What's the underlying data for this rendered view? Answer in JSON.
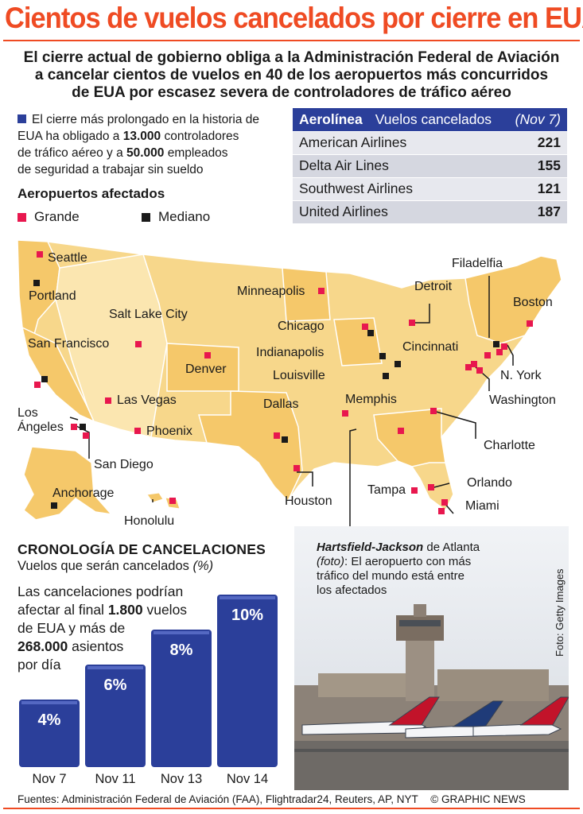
{
  "header": {
    "title": "Cientos de vuelos cancelados por cierre en EUA",
    "subtitle_lines": [
      "El cierre actual de gobierno obliga a la Administración Federal de Aviación",
      "a cancelar cientos de vuelos en 40 de los aeropuertos más concurridos",
      "de EUA por escasez severa de controladores de tráfico aéreo"
    ]
  },
  "intro": {
    "line1": "El cierre más prolongado en la historia de",
    "line2a": "EUA ha obligado a ",
    "controllers": "13.000",
    "line2b": " controladores",
    "line3a": "de tráfico aéreo y a ",
    "employees": "50.000",
    "line3b": " empleados",
    "line4": "de seguridad a trabajar sin sueldo"
  },
  "legend": {
    "title": "Aeropuertos afectados",
    "large": "Grande",
    "medium": "Mediano",
    "large_color": "#e8174e",
    "medium_color": "#1a1a1a"
  },
  "table": {
    "col1": "Aerolínea",
    "col2": "Vuelos cancelados",
    "col3": "(Nov 7)",
    "rows": [
      {
        "airline": "American Airlines",
        "flights": "221"
      },
      {
        "airline": "Delta Air Lines",
        "flights": "155"
      },
      {
        "airline": "Southwest Airlines",
        "flights": "121"
      },
      {
        "airline": "United Airlines",
        "flights": "187"
      }
    ]
  },
  "map": {
    "cities": {
      "seattle": "Seattle",
      "portland": "Portland",
      "san_francisco": "San Francisco",
      "salt_lake": "Salt Lake City",
      "denver": "Denver",
      "las_vegas": "Las Vegas",
      "los_angeles_1": "Los",
      "los_angeles_2": "Ángeles",
      "phoenix": "Phoenix",
      "san_diego": "San Diego",
      "anchorage": "Anchorage",
      "honolulu": "Honolulu",
      "minneapolis": "Minneapolis",
      "chicago": "Chicago",
      "indianapolis": "Indianapolis",
      "louisville": "Louisville",
      "dallas": "Dallas",
      "houston": "Houston",
      "memphis": "Memphis",
      "detroit": "Detroit",
      "cincinnati": "Cincinnati",
      "filadelfia": "Filadelfia",
      "boston": "Boston",
      "nyork": "N. York",
      "washington": "Washington",
      "charlotte": "Charlotte",
      "orlando": "Orlando",
      "tampa": "Tampa",
      "miami": "Miami"
    },
    "land_color": "#f7d78b",
    "land_color_alt": "#f5c86a",
    "land_color_light": "#fbe6b0",
    "border_color": "#ffffff"
  },
  "timeline": {
    "title": "CRONOLOGÍA DE CANCELACIONES",
    "subtitle": "Vuelos que serán cancelados",
    "subtitle_unit": "(%)",
    "note_line1": "Las cancelaciones podrían",
    "note_line2a": "afectar al final ",
    "note_flights": "1.800",
    "note_line2b": " vuelos",
    "note_line3": "de EUA y más de",
    "note_seats": "268.000",
    "note_line4b": " asientos",
    "note_line5": "por día"
  },
  "chart_data": {
    "type": "bar",
    "categories": [
      "Nov 7",
      "Nov 11",
      "Nov 13",
      "Nov 14"
    ],
    "values": [
      4,
      6,
      8,
      10
    ],
    "value_labels": [
      "4%",
      "6%",
      "8%",
      "10%"
    ],
    "title": "CRONOLOGÍA DE CANCELACIONES",
    "subtitle": "Vuelos que serán cancelados (%)",
    "ylabel": "",
    "xlabel": "",
    "ylim": [
      0,
      10
    ],
    "bar_color": "#2b3f9a"
  },
  "photo": {
    "caption_bold": "Hartsfield-Jackson",
    "caption_rest": " de Atlanta",
    "caption_foto": "(foto)",
    "caption_line2": ": El aeropuerto con más",
    "caption_line3": "tráfico del mundo está entre",
    "caption_line4": "los afectados",
    "credit": "Foto: Getty Images"
  },
  "footer": {
    "source": "Fuentes: Administración Federal de Aviación (FAA), Flightradar24, Reuters, AP, NYT",
    "brand": "© GRAPHIC NEWS"
  },
  "colors": {
    "accent": "#ef4b23",
    "blue": "#2b3f9a",
    "red_marker": "#e8174e"
  }
}
